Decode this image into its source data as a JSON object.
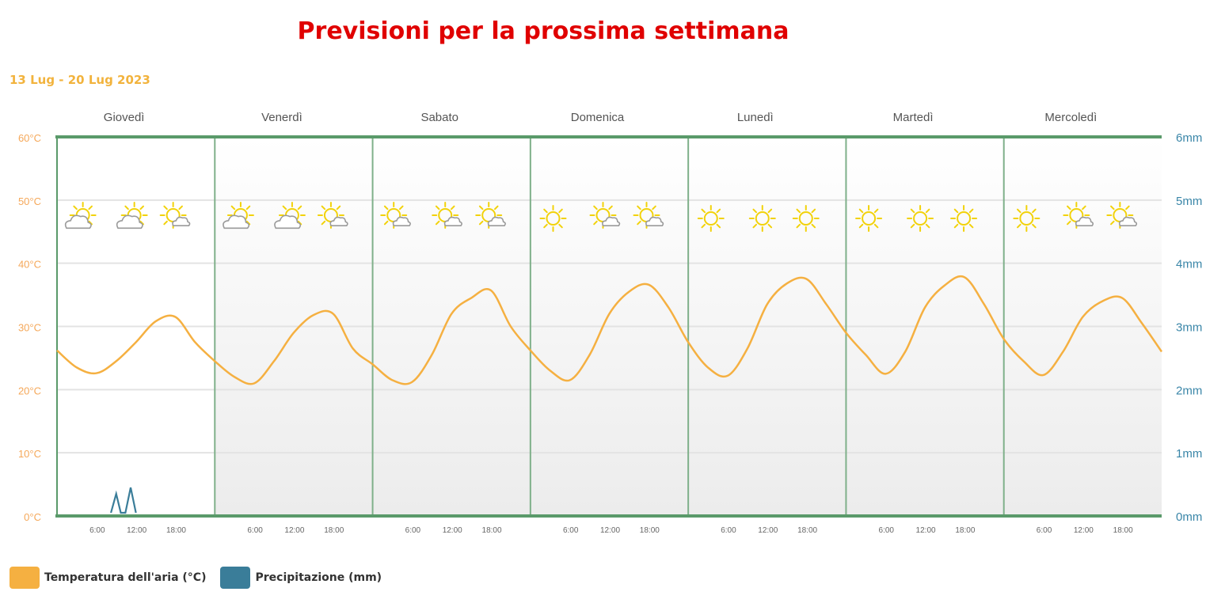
{
  "title": "Previsioni per la prossima settimana",
  "date_range": "13 Lug - 20 Lug 2023",
  "colors": {
    "temperature": "#f5b041",
    "precipitation": "#3a7d99",
    "day_divider": "#7fb08a",
    "axis_border": "#5a9a6a",
    "title": "#e00000",
    "date_range": "#f2b33d",
    "left_axis": "#f5a85a",
    "right_axis": "#3a86a8",
    "sun": "#f2d20a",
    "cloud": "#9a9a9a"
  },
  "legend": [
    {
      "label": "Temperatura dell'aria (°C)",
      "color": "#f5b041"
    },
    {
      "label": "Precipitazione (mm)",
      "color": "#3a7d99"
    }
  ],
  "chart_data": {
    "type": "line",
    "days": [
      "Giovedì",
      "Venerdì",
      "Sabato",
      "Domenica",
      "Lunedì",
      "Martedì",
      "Mercoledì"
    ],
    "hour_ticks": [
      "6:00",
      "12:00",
      "18:00"
    ],
    "y_left": {
      "label": "",
      "unit": "°C",
      "ticks": [
        "0°C",
        "10°C",
        "20°C",
        "30°C",
        "40°C",
        "50°C",
        "60°C"
      ],
      "range": [
        0,
        60
      ]
    },
    "y_right": {
      "label": "",
      "unit": "mm",
      "ticks": [
        "0mm",
        "1mm",
        "2mm",
        "3mm",
        "4mm",
        "5mm",
        "6mm"
      ],
      "range": [
        0,
        6
      ]
    },
    "x_range_hours": [
      0,
      168
    ],
    "grid": true,
    "legend_position": "bottom-left",
    "series": [
      {
        "name": "Temperatura dell'aria (°C)",
        "axis": "left",
        "hours": [
          0,
          3,
          6,
          9,
          12,
          15,
          18,
          21,
          24,
          27,
          30,
          33,
          36,
          39,
          42,
          45,
          48,
          51,
          54,
          57,
          60,
          63,
          66,
          69,
          72,
          75,
          78,
          81,
          84,
          87,
          90,
          93,
          96,
          99,
          102,
          105,
          108,
          111,
          114,
          117,
          120,
          123,
          126,
          129,
          132,
          135,
          138,
          141,
          144,
          147,
          150,
          153,
          156,
          159,
          162,
          165,
          168
        ],
        "values": [
          26.2,
          23.5,
          22.6,
          24.5,
          27.5,
          30.8,
          31.5,
          27.5,
          24.5,
          22.0,
          21.0,
          24.5,
          29.0,
          31.8,
          32.0,
          26.5,
          24.0,
          21.5,
          21.2,
          25.5,
          32.0,
          34.5,
          35.7,
          30.0,
          26.2,
          23.0,
          21.5,
          25.5,
          32.0,
          35.5,
          36.6,
          33.0,
          27.5,
          23.5,
          22.2,
          26.5,
          33.5,
          36.8,
          37.5,
          33.5,
          29.0,
          25.5,
          22.5,
          26.0,
          33.0,
          36.5,
          37.8,
          33.5,
          28.0,
          24.5,
          22.3,
          26.0,
          31.5,
          34.0,
          34.5,
          30.5,
          26.0
        ]
      },
      {
        "name": "Precipitazione (mm)",
        "axis": "right",
        "hours": [
          8.2,
          9.0,
          9.7,
          10.4,
          11.2,
          12.0
        ],
        "values": [
          0,
          0.3,
          0,
          0,
          0.4,
          0
        ]
      }
    ],
    "weather_icons": [
      [
        "partly-cloudy",
        "partly-cloudy",
        "mostly-sunny"
      ],
      [
        "partly-cloudy",
        "partly-cloudy",
        "mostly-sunny"
      ],
      [
        "mostly-sunny",
        "mostly-sunny",
        "mostly-sunny"
      ],
      [
        "sunny",
        "mostly-sunny",
        "mostly-sunny"
      ],
      [
        "sunny",
        "sunny",
        "sunny"
      ],
      [
        "sunny",
        "sunny",
        "sunny"
      ],
      [
        "sunny",
        "mostly-sunny",
        "mostly-sunny"
      ]
    ]
  }
}
